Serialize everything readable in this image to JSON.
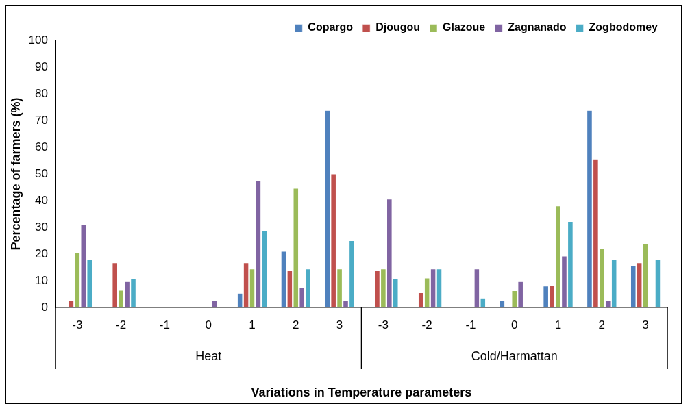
{
  "chart_data": {
    "type": "bar",
    "xlabel": "Variations in Temperature parameters",
    "ylabel": "Percentage of farmers (%)",
    "categories": [
      "-3",
      "-2",
      "-1",
      "0",
      "1",
      "2",
      "3",
      "-3",
      "-2",
      "-1",
      "0",
      "1",
      "2",
      "3"
    ],
    "annotations": [
      "Heat",
      "Cold/Harmattan"
    ],
    "series": [
      {
        "name": "Copargo",
        "color": "#4f81bd",
        "values": [
          0,
          0,
          0,
          0,
          5.3,
          21,
          73.8,
          0,
          0,
          0,
          2.7,
          8,
          73.8,
          15.8
        ]
      },
      {
        "name": "Djougou",
        "color": "#c0504d",
        "values": [
          2.7,
          16.7,
          0,
          0,
          16.7,
          14,
          50,
          14,
          5.5,
          0,
          0,
          8.3,
          55.6,
          16.7
        ]
      },
      {
        "name": "Glazoue",
        "color": "#9bbb59",
        "values": [
          20.5,
          6.4,
          0,
          0,
          14.4,
          44.6,
          14.4,
          14.4,
          11,
          0,
          6.3,
          38,
          22.2,
          23.8
        ]
      },
      {
        "name": "Zagnanado",
        "color": "#8064a2",
        "values": [
          31,
          9.7,
          0,
          2.5,
          47.5,
          7.3,
          2.5,
          40.6,
          14.4,
          14.4,
          9.7,
          19.2,
          2.5,
          0
        ]
      },
      {
        "name": "Zogbodomey",
        "color": "#4bacc6",
        "values": [
          18,
          10.8,
          0,
          0,
          28.6,
          14.4,
          25,
          10.8,
          14.4,
          3.5,
          0,
          32.2,
          18,
          18
        ]
      }
    ],
    "ylim": [
      0,
      100
    ],
    "yticks": [
      0,
      10,
      20,
      30,
      40,
      50,
      60,
      70,
      80,
      90,
      100
    ],
    "grid": false,
    "legend": "top right"
  }
}
